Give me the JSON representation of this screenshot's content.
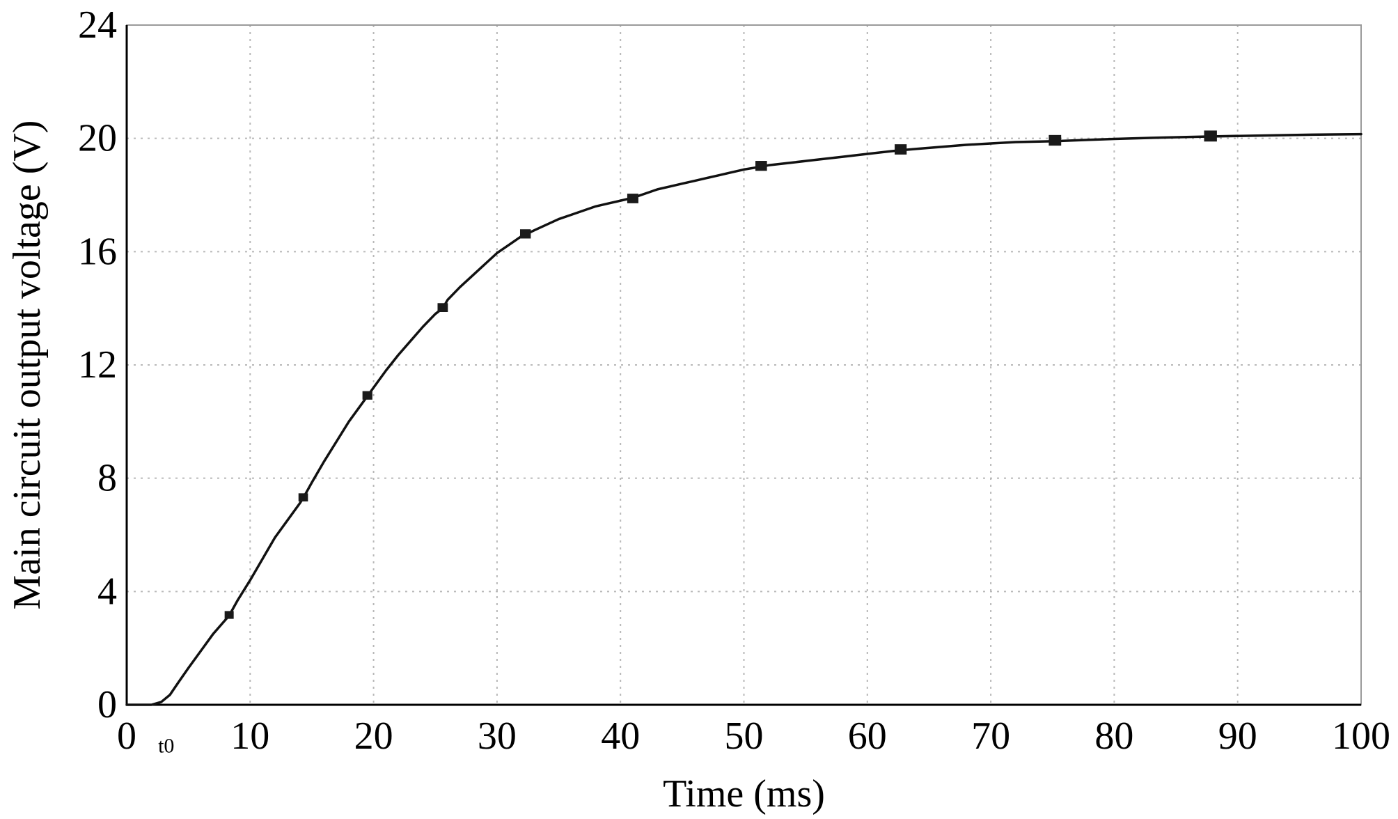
{
  "chart_data": {
    "type": "line",
    "title": "",
    "xlabel": "Time (ms)",
    "ylabel": "Main circuit output voltage (V)",
    "xlim": [
      0,
      100
    ],
    "ylim": [
      0,
      24
    ],
    "x_ticks": [
      0,
      10,
      20,
      30,
      40,
      50,
      60,
      70,
      80,
      90,
      100
    ],
    "y_ticks": [
      0,
      4,
      8,
      12,
      16,
      20,
      24
    ],
    "x_tick_labels": [
      "0",
      "10",
      "20",
      "30",
      "40",
      "50",
      "60",
      "70",
      "80",
      "90",
      "100"
    ],
    "y_tick_labels": [
      "0",
      "4",
      "8",
      "12",
      "16",
      "20",
      "24"
    ],
    "grid": true,
    "legend": "none",
    "annotations": [
      {
        "text": "t0",
        "x": 3.2,
        "y": -0.45
      }
    ],
    "series": [
      {
        "x": [
          0,
          2,
          2.8,
          3.5,
          4.2,
          5,
          6,
          7,
          8,
          8.3,
          9,
          10,
          11,
          12,
          13,
          14,
          14.3,
          15,
          16,
          17,
          18,
          19,
          19.5,
          20,
          21,
          22,
          23,
          24,
          25,
          25.6,
          26,
          27,
          28,
          29,
          30,
          31,
          32,
          32.3,
          33,
          34,
          35,
          36,
          37,
          38,
          39,
          40,
          41,
          42,
          43,
          44,
          45,
          46,
          47,
          48,
          49,
          50,
          51.4,
          52,
          54,
          56,
          58,
          60,
          62,
          62.7,
          64,
          66,
          68,
          70,
          72,
          75.2,
          78,
          80,
          84,
          88,
          92,
          96,
          100
        ],
        "y": [
          0,
          0,
          0.1,
          0.35,
          0.8,
          1.3,
          1.9,
          2.5,
          3.0,
          3.15,
          3.7,
          4.4,
          5.15,
          5.9,
          6.5,
          7.1,
          7.3,
          7.85,
          8.6,
          9.3,
          10.0,
          10.6,
          10.9,
          11.2,
          11.8,
          12.35,
          12.85,
          13.35,
          13.8,
          14.0,
          14.3,
          14.75,
          15.15,
          15.55,
          15.95,
          16.25,
          16.55,
          16.6,
          16.75,
          16.95,
          17.15,
          17.3,
          17.45,
          17.6,
          17.7,
          17.8,
          17.9,
          18.05,
          18.2,
          18.3,
          18.4,
          18.5,
          18.6,
          18.7,
          18.8,
          18.9,
          19.0,
          19.05,
          19.15,
          19.25,
          19.35,
          19.45,
          19.55,
          19.58,
          19.63,
          19.7,
          19.77,
          19.82,
          19.87,
          19.9,
          19.95,
          19.98,
          20.03,
          20.07,
          20.1,
          20.13,
          20.15
        ],
        "markers_x": [
          8.3,
          14.3,
          19.5,
          25.6,
          32.3,
          41,
          51.4,
          62.7,
          75.2,
          87.8
        ],
        "markers_y": [
          3.15,
          7.3,
          10.9,
          14.0,
          16.6,
          17.85,
          19.0,
          19.58,
          19.9,
          20.05
        ]
      }
    ]
  }
}
